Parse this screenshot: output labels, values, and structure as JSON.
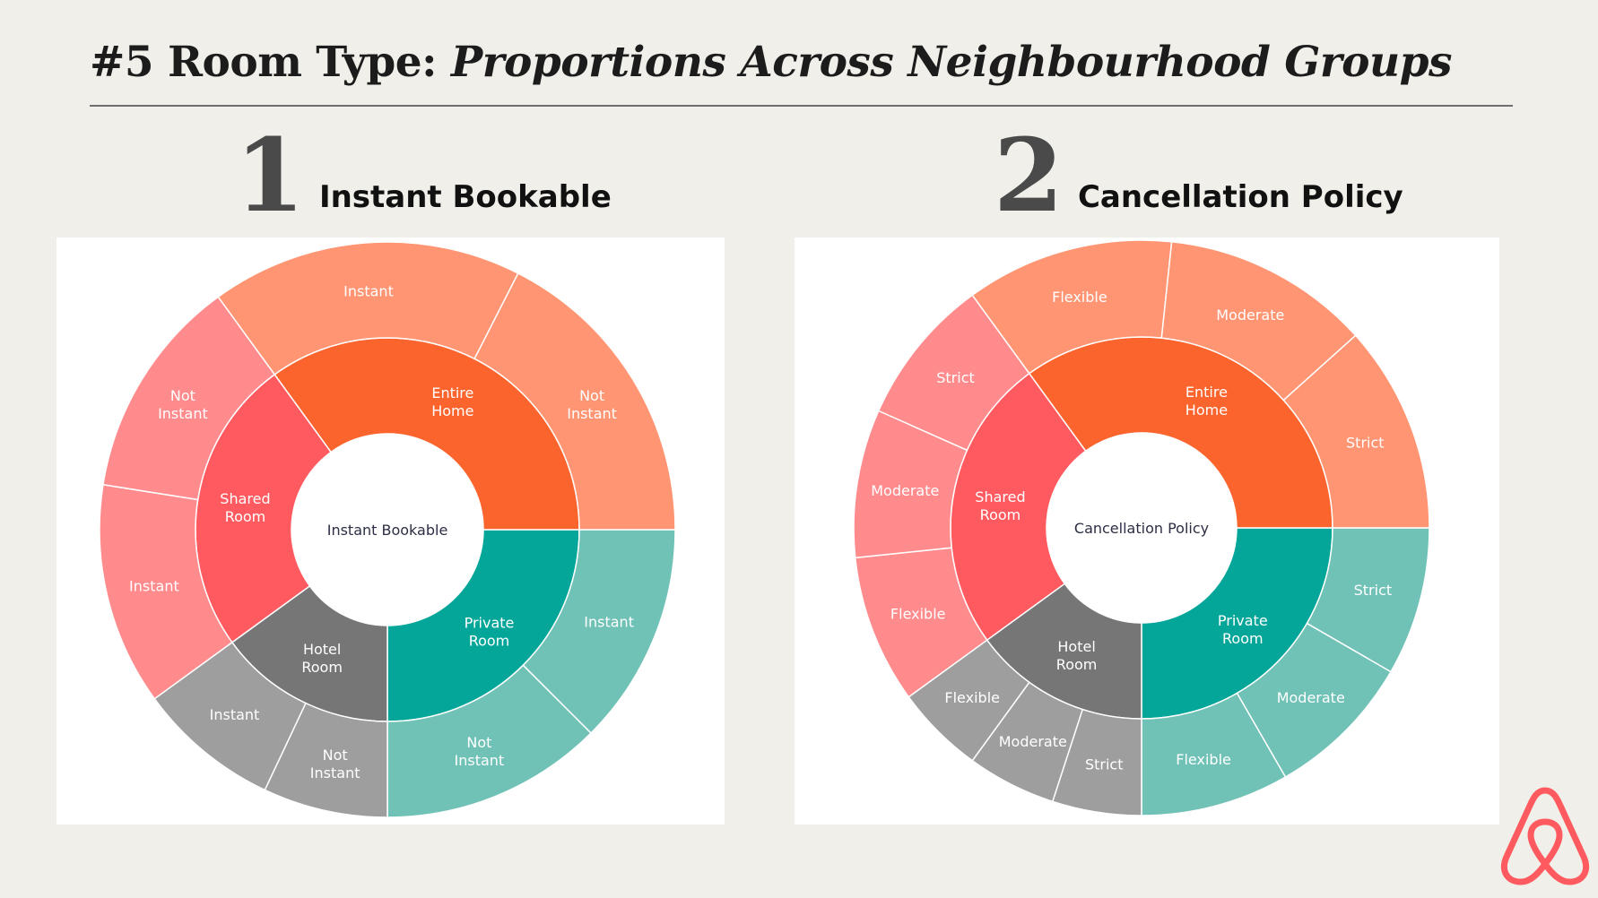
{
  "title": {
    "prefix": "#5 Room Type: ",
    "italic": "Proportions Across Neighbourhood Groups"
  },
  "sections": [
    {
      "number": "1",
      "label": "Instant Bookable"
    },
    {
      "number": "2",
      "label": "Cancellation Policy"
    }
  ],
  "colors": {
    "private_inner": "#04a699",
    "private_outer": "#70c1b6",
    "hotel_inner": "#767676",
    "hotel_outer": "#9e9e9e",
    "shared_inner": "#ff5a5f",
    "shared_outer": "#ff8b8d",
    "entire_inner": "#fc642d",
    "entire_outer": "#ff9572",
    "logo": "#ff5a5f",
    "background": "#f0efe9"
  },
  "chart_data": [
    {
      "type": "sunburst",
      "center_label": "Instant Bookable",
      "rings": [
        {
          "name": "Private Room",
          "label": [
            "Private",
            "Room"
          ],
          "value": 25,
          "children": [
            {
              "name": "Instant",
              "label": [
                "Instant"
              ],
              "value": 12.5
            },
            {
              "name": "Not Instant",
              "label": [
                "Not",
                "Instant"
              ],
              "value": 12.5
            }
          ]
        },
        {
          "name": "Hotel Room",
          "label": [
            "Hotel",
            "Room"
          ],
          "value": 15,
          "children": [
            {
              "name": "Not Instant",
              "label": [
                "Not",
                "Instant"
              ],
              "value": 7
            },
            {
              "name": "Instant",
              "label": [
                "Instant"
              ],
              "value": 8
            }
          ]
        },
        {
          "name": "Shared Room",
          "label": [
            "Shared",
            "Room"
          ],
          "value": 25,
          "children": [
            {
              "name": "Instant",
              "label": [
                "Instant"
              ],
              "value": 12.5
            },
            {
              "name": "Not Instant",
              "label": [
                "Not",
                "Instant"
              ],
              "value": 12.5
            }
          ]
        },
        {
          "name": "Entire Home",
          "label": [
            "Entire",
            "Home"
          ],
          "value": 35,
          "children": [
            {
              "name": "Instant",
              "label": [
                "Instant"
              ],
              "value": 17.5
            },
            {
              "name": "Not Instant",
              "label": [
                "Not",
                "Instant"
              ],
              "value": 17.5
            }
          ]
        }
      ]
    },
    {
      "type": "sunburst",
      "center_label": "Cancellation Policy",
      "rings": [
        {
          "name": "Private Room",
          "label": [
            "Private",
            "Room"
          ],
          "value": 25,
          "children": [
            {
              "name": "Strict",
              "label": [
                "Strict"
              ],
              "value": 8.34
            },
            {
              "name": "Moderate",
              "label": [
                "Moderate"
              ],
              "value": 8.33
            },
            {
              "name": "Flexible",
              "label": [
                "Flexible"
              ],
              "value": 8.33
            }
          ]
        },
        {
          "name": "Hotel Room",
          "label": [
            "Hotel",
            "Room"
          ],
          "value": 15,
          "children": [
            {
              "name": "Strict",
              "label": [
                "Strict"
              ],
              "value": 5
            },
            {
              "name": "Moderate",
              "label": [
                "Moderate"
              ],
              "value": 5
            },
            {
              "name": "Flexible",
              "label": [
                "Flexible"
              ],
              "value": 5
            }
          ]
        },
        {
          "name": "Shared Room",
          "label": [
            "Shared",
            "Room"
          ],
          "value": 25,
          "children": [
            {
              "name": "Flexible",
              "label": [
                "Flexible"
              ],
              "value": 8.34
            },
            {
              "name": "Moderate",
              "label": [
                "Moderate"
              ],
              "value": 8.33
            },
            {
              "name": "Strict",
              "label": [
                "Strict"
              ],
              "value": 8.33
            }
          ]
        },
        {
          "name": "Entire Home",
          "label": [
            "Entire",
            "Home"
          ],
          "value": 35,
          "children": [
            {
              "name": "Flexible",
              "label": [
                "Flexible"
              ],
              "value": 11.67
            },
            {
              "name": "Moderate",
              "label": [
                "Moderate"
              ],
              "value": 11.67
            },
            {
              "name": "Strict",
              "label": [
                "Strict"
              ],
              "value": 11.66
            }
          ]
        }
      ]
    }
  ]
}
